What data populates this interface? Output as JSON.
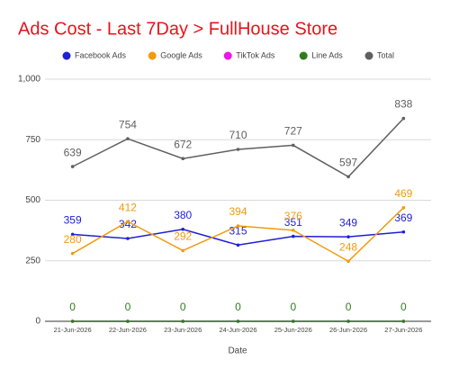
{
  "chart_data": {
    "type": "line",
    "title": "Ads Cost - Last 7Day > FullHouse Store",
    "x_label": "Date",
    "categories": [
      "21-Jun-2026",
      "22-Jun-2026",
      "23-Jun-2026",
      "24-Jun-2026",
      "25-Jun-2026",
      "26-Jun-2026",
      "27-Jun-2026"
    ],
    "series": [
      {
        "name": "Facebook Ads",
        "color": "#1f1fd6",
        "values": [
          359,
          342,
          380,
          315,
          351,
          349,
          369
        ],
        "show_labels": true
      },
      {
        "name": "Google Ads",
        "color": "#f29b0c",
        "values": [
          280,
          412,
          292,
          394,
          376,
          248,
          469
        ],
        "show_labels": true
      },
      {
        "name": "TikTok Ads",
        "color": "#f015e8",
        "values": [
          0,
          0,
          0,
          0,
          0,
          0,
          0
        ],
        "show_labels": false
      },
      {
        "name": "Line Ads",
        "color": "#2e7d1a",
        "values": [
          0,
          0,
          0,
          0,
          0,
          0,
          0
        ],
        "show_labels": true
      },
      {
        "name": "Total",
        "color": "#5f5f5f",
        "values": [
          639,
          754,
          672,
          710,
          727,
          597,
          838
        ],
        "show_labels": true
      }
    ],
    "ylim": [
      0,
      1000
    ],
    "yticks": [
      0,
      250,
      500,
      750,
      {
        "value": 1000,
        "label": "1,000"
      }
    ],
    "grid": true,
    "legend": "top"
  }
}
